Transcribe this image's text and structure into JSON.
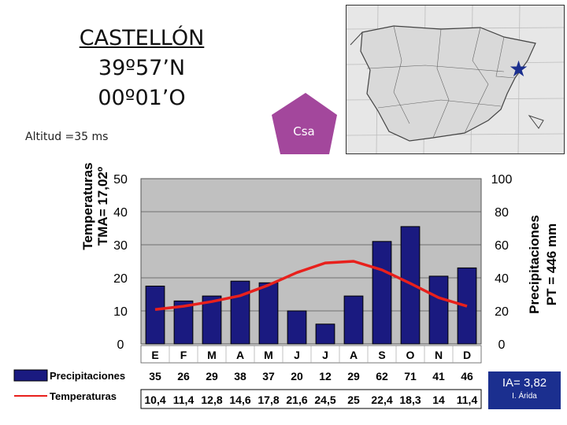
{
  "title": {
    "line1": "CASTELLÓN",
    "line2": "39º57’N",
    "line3": "00º01’O"
  },
  "altitude": "Altitud =35 ms",
  "koppen": "Csa",
  "colors": {
    "bars": "#1a1a80",
    "line": "#e8201c",
    "plot_bg": "#c0c0c0",
    "pentagon": "#a3479c",
    "ia_bg": "#1b2f8f"
  },
  "left_axis": {
    "line1": "Temperaturas",
    "line2": "TMA= 17,02º",
    "ticks": [
      "0",
      "10",
      "20",
      "30",
      "40",
      "50"
    ]
  },
  "right_axis": {
    "line1": "Precipitaciones",
    "line2": "PT = 446 mm",
    "ticks": [
      "0",
      "20",
      "40",
      "60",
      "80",
      "100"
    ]
  },
  "table": {
    "precip_label": "Precipitaciones",
    "temp_label": "Temperaturas",
    "precip_values": [
      "35",
      "26",
      "29",
      "38",
      "37",
      "20",
      "12",
      "29",
      "62",
      "71",
      "41",
      "46"
    ],
    "temp_values": [
      "10,4",
      "11,4",
      "12,8",
      "14,6",
      "17,8",
      "21,6",
      "24,5",
      "25",
      "22,4",
      "18,3",
      "14",
      "11,4"
    ]
  },
  "ia": {
    "value": "IA= 3,82",
    "classification": "I. Árida"
  },
  "chart_data": {
    "type": "bar",
    "categories": [
      "E",
      "F",
      "M",
      "A",
      "M",
      "J",
      "J",
      "A",
      "S",
      "O",
      "N",
      "D"
    ],
    "series": [
      {
        "name": "Precipitaciones",
        "type": "bar",
        "axis": "right",
        "values": [
          35,
          26,
          29,
          38,
          37,
          20,
          12,
          29,
          62,
          71,
          41,
          46
        ]
      },
      {
        "name": "Temperaturas",
        "type": "line",
        "axis": "left",
        "values": [
          10.4,
          11.4,
          12.8,
          14.6,
          17.8,
          21.6,
          24.5,
          25,
          22.4,
          18.3,
          14,
          11.4
        ]
      }
    ],
    "ylim_left": [
      0,
      50
    ],
    "ylim_right": [
      0,
      100
    ],
    "grid": true
  }
}
